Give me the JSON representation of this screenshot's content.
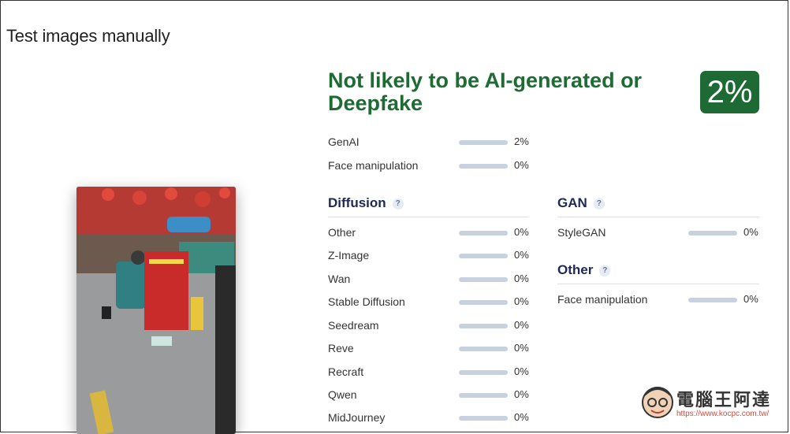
{
  "page_title": "Test images manually",
  "result": {
    "verdict": "Not likely to be AI-generated or Deepfake",
    "score": "2%"
  },
  "summary": [
    {
      "label": "GenAI",
      "value": "2%",
      "level": 0.02
    },
    {
      "label": "Face manipulation",
      "value": "0%",
      "level": 0
    }
  ],
  "diffusion": {
    "title": "Diffusion",
    "help": "?",
    "items": [
      {
        "label": "Other",
        "value": "0%"
      },
      {
        "label": "Z-Image",
        "value": "0%"
      },
      {
        "label": "Wan",
        "value": "0%"
      },
      {
        "label": "Stable Diffusion",
        "value": "0%"
      },
      {
        "label": "Seedream",
        "value": "0%"
      },
      {
        "label": "Reve",
        "value": "0%"
      },
      {
        "label": "Recraft",
        "value": "0%"
      },
      {
        "label": "Qwen",
        "value": "0%"
      },
      {
        "label": "MidJourney",
        "value": "0%"
      }
    ]
  },
  "gan": {
    "title": "GAN",
    "help": "?",
    "items": [
      {
        "label": "StyleGAN",
        "value": "0%"
      }
    ]
  },
  "other": {
    "title": "Other",
    "help": "?",
    "items": [
      {
        "label": "Face manipulation",
        "value": "0%"
      }
    ]
  },
  "watermark": {
    "text": "電腦王阿達",
    "url": "https://www.kocpc.com.tw/"
  },
  "colors": {
    "verdict_green": "#1f6b34",
    "badge_green": "#1e6a35",
    "bar_gray": "#c8d1de",
    "section_navy": "#1e2a55"
  }
}
